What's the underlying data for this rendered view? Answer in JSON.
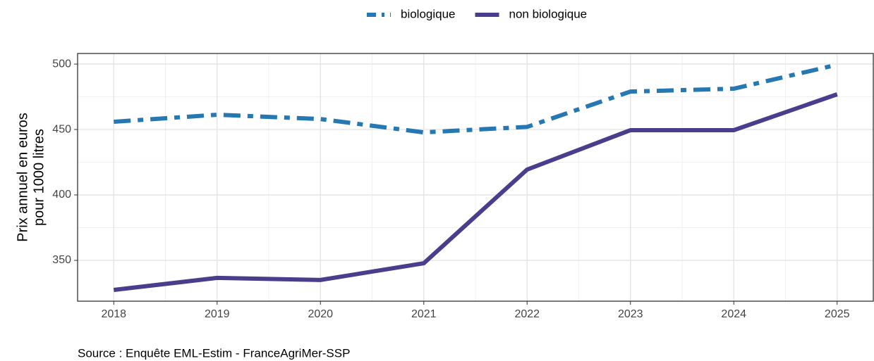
{
  "chart_data": {
    "type": "line",
    "y_label_lines": [
      "Prix annuel en euros",
      "pour 1000 litres"
    ],
    "caption": "Source : Enquête EML-Estim - FranceAgriMer-SSP",
    "x": [
      2018,
      2019,
      2020,
      2021,
      2022,
      2023,
      2024,
      2025
    ],
    "series": [
      {
        "name": "biologique",
        "color": "#2678b2",
        "linestyle": "dashdot",
        "values": [
          455.9,
          461.3,
          458,
          447.8,
          452,
          479,
          481.2,
          499.5
        ]
      },
      {
        "name": "non biologique",
        "color": "#4a3d8c",
        "linestyle": "solid",
        "values": [
          327.4,
          336.6,
          335,
          347.8,
          419.4,
          449.5,
          449.5,
          476.9
        ]
      }
    ],
    "xlim": [
      2017.65,
      2025.35
    ],
    "xticks": [
      2018,
      2019,
      2020,
      2021,
      2022,
      2023,
      2024,
      2025
    ],
    "ylim": [
      318.8,
      508.1
    ],
    "yticks": [
      350,
      400,
      450,
      500
    ],
    "grid": true,
    "legend": "top"
  }
}
